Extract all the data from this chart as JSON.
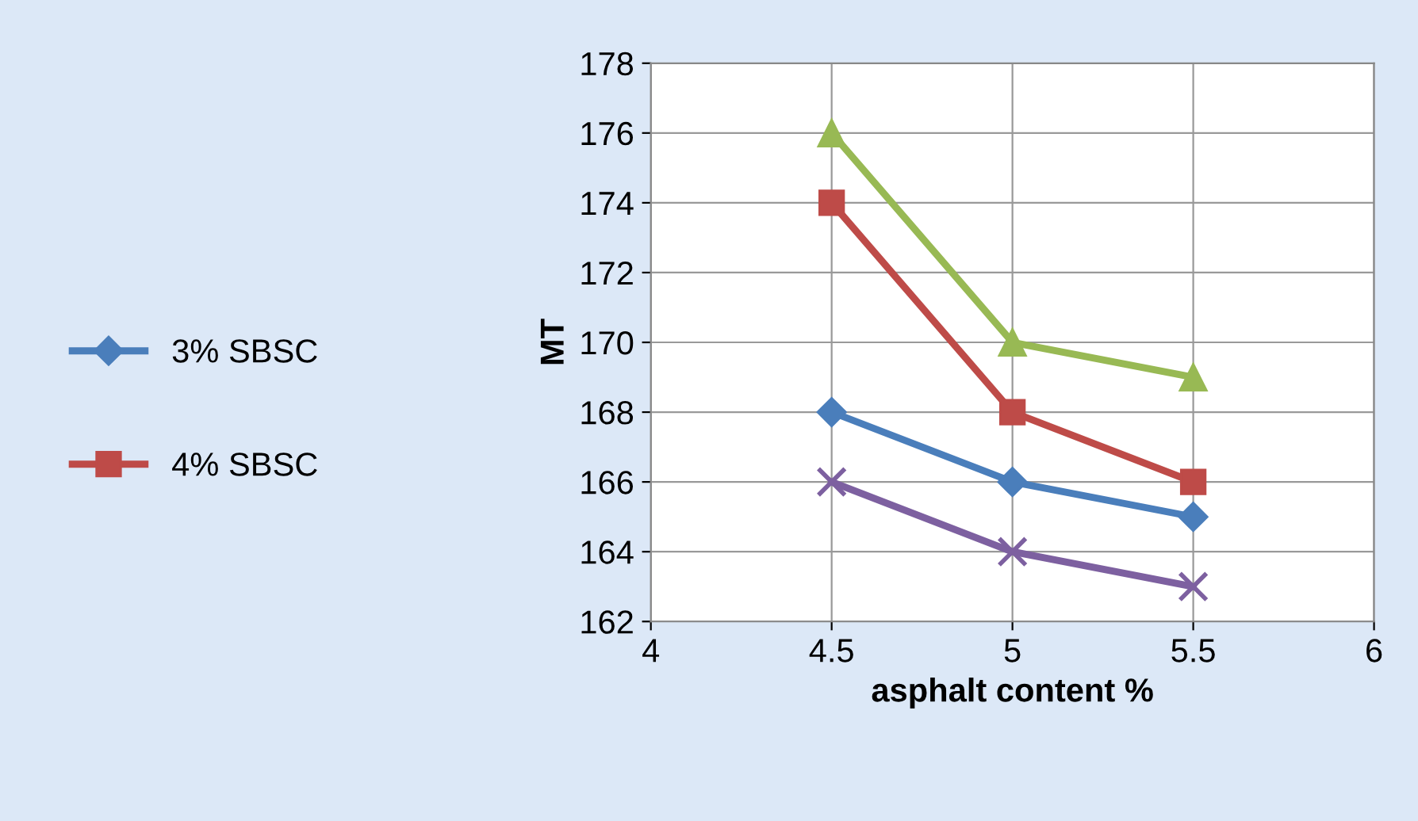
{
  "chart_data": {
    "type": "line",
    "xlabel": "asphalt content %",
    "ylabel": "MT",
    "x": [
      4.5,
      5,
      5.5
    ],
    "series": [
      {
        "name": "3% SBSC",
        "color": "#4a7ebb",
        "marker": "diamond",
        "values": [
          168,
          166,
          165
        ]
      },
      {
        "name": "4% SBSC",
        "color": "#be4b48",
        "marker": "square",
        "values": [
          174,
          168,
          166
        ]
      },
      {
        "color": "#98b954",
        "marker": "triangle",
        "values": [
          176,
          170,
          169
        ]
      },
      {
        "color": "#7d60a0",
        "marker": "cross",
        "values": [
          166,
          164,
          163
        ]
      }
    ],
    "xlim": [
      4,
      6
    ],
    "xticks": [
      4,
      4.5,
      5,
      5.5,
      6
    ],
    "ylim": [
      162,
      178
    ],
    "yticks": [
      162,
      164,
      166,
      168,
      170,
      172,
      174,
      176,
      178
    ],
    "grid": true,
    "legend": "left",
    "line_style": "solid"
  }
}
